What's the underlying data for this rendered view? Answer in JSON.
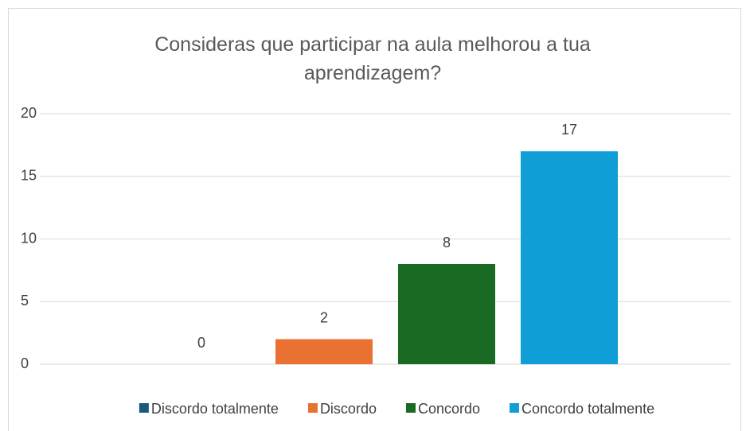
{
  "chart_data": {
    "type": "bar",
    "title": "Consideras que participar na aula melhorou a tua aprendizagem?",
    "categories": [
      null
    ],
    "series": [
      {
        "name": "Discordo totalmente",
        "color": "#1b5a7a",
        "values": [
          0
        ]
      },
      {
        "name": "Discordo",
        "color": "#e97132",
        "values": [
          2
        ]
      },
      {
        "name": "Concordo",
        "color": "#196b24",
        "values": [
          8
        ]
      },
      {
        "name": "Concordo totalmente",
        "color": "#0f9ed5",
        "values": [
          17
        ]
      }
    ],
    "ylim": [
      0,
      20
    ],
    "yticks": [
      0,
      5,
      10,
      15,
      20
    ],
    "grid": true,
    "legend": "bottom"
  }
}
